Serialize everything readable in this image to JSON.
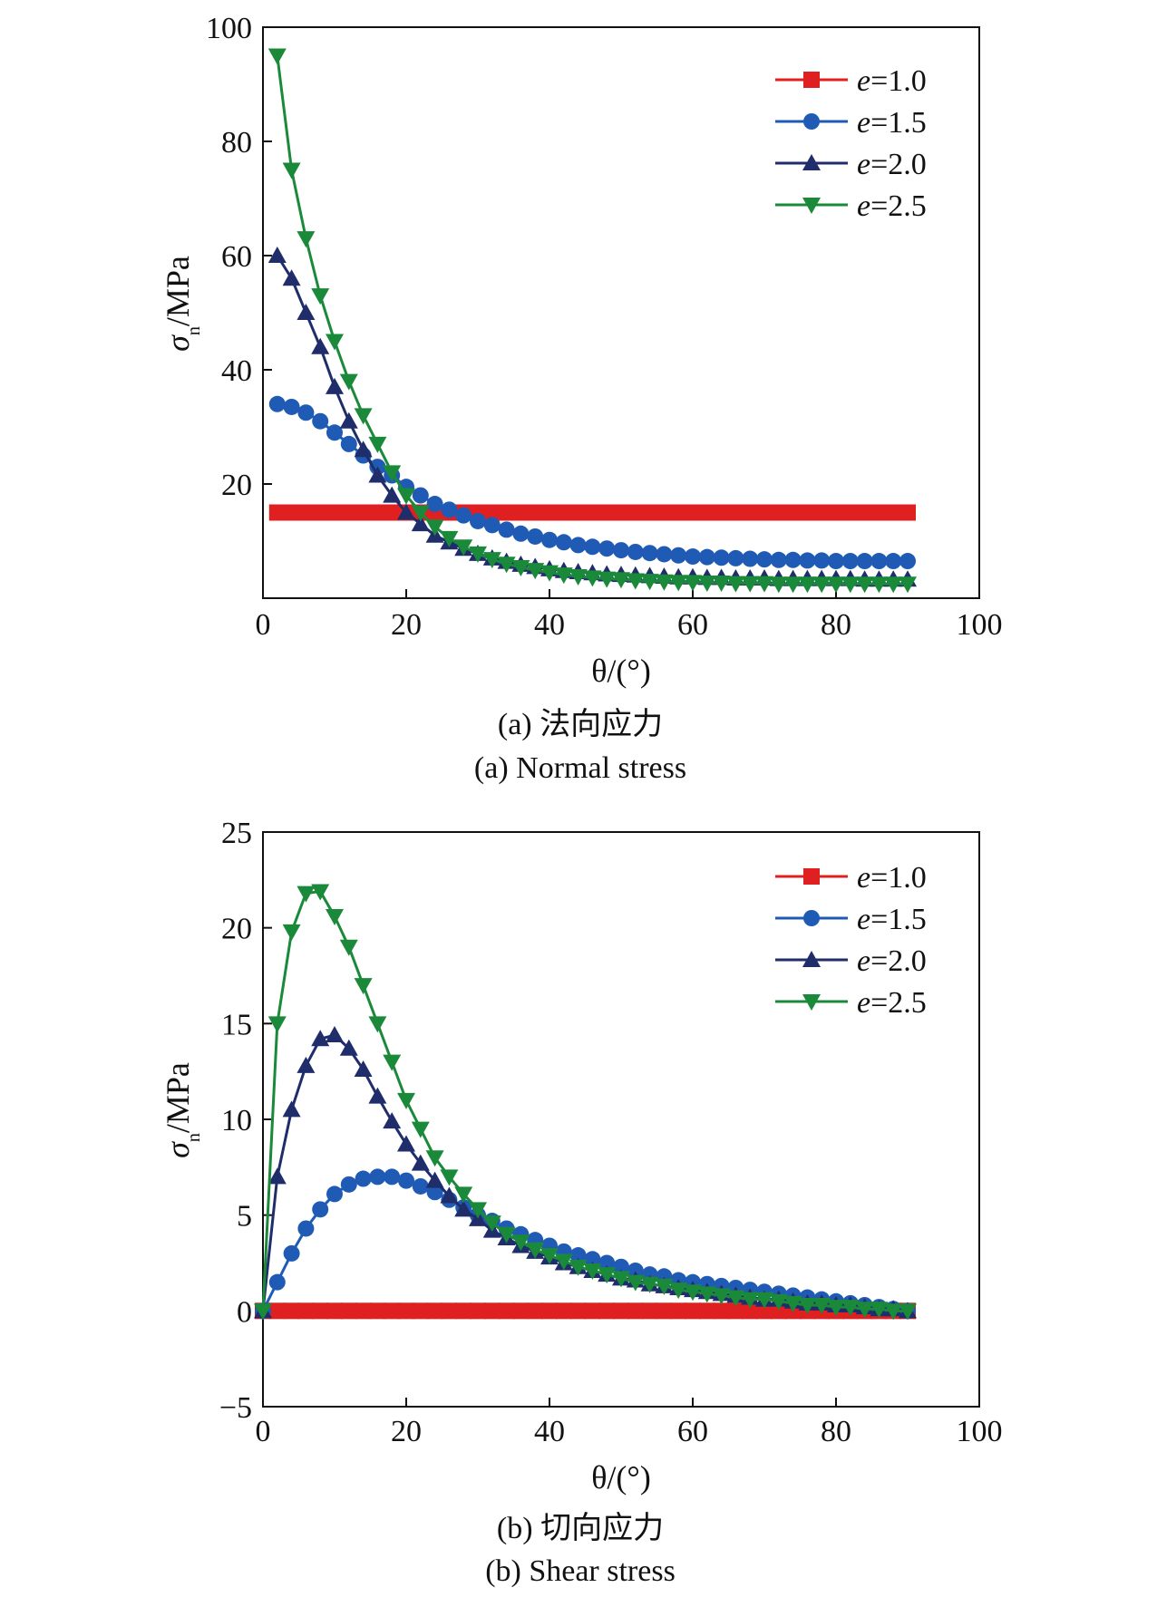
{
  "chart_data": [
    {
      "type": "line",
      "caption_cn": "(a) 法向应力",
      "caption_en": "(a) Normal stress",
      "xlabel": "θ/(°)",
      "ylabel": "σ",
      "ylabel_sub": "n",
      "ylabel_unit": "/MPa",
      "xlim": [
        0,
        100
      ],
      "ylim": [
        0,
        100
      ],
      "xticks": [
        "0",
        "20",
        "40",
        "60",
        "80",
        "100"
      ],
      "yticks": [
        "",
        "20",
        "40",
        "60",
        "80",
        "100"
      ],
      "legend_position": "top-right",
      "x": [
        2,
        4,
        6,
        8,
        10,
        12,
        14,
        16,
        18,
        20,
        22,
        24,
        26,
        28,
        30,
        32,
        34,
        36,
        38,
        40,
        42,
        44,
        46,
        48,
        50,
        52,
        54,
        56,
        58,
        60,
        62,
        64,
        66,
        68,
        70,
        72,
        74,
        76,
        78,
        80,
        82,
        84,
        86,
        88,
        90
      ],
      "series": [
        {
          "name": "e=1.0",
          "marker": "square",
          "color": "#e02020",
          "values": [
            15,
            15,
            15,
            15,
            15,
            15,
            15,
            15,
            15,
            15,
            15,
            15,
            15,
            15,
            15,
            15,
            15,
            15,
            15,
            15,
            15,
            15,
            15,
            15,
            15,
            15,
            15,
            15,
            15,
            15,
            15,
            15,
            15,
            15,
            15,
            15,
            15,
            15,
            15,
            15,
            15,
            15,
            15,
            15,
            15
          ]
        },
        {
          "name": "e=1.5",
          "marker": "circle",
          "color": "#1f5bb5",
          "values": [
            34,
            33.5,
            32.5,
            31,
            29,
            27,
            25,
            23,
            21.5,
            19.5,
            18,
            16.5,
            15.5,
            14.5,
            13.5,
            12.8,
            12,
            11.3,
            10.8,
            10.2,
            9.8,
            9.3,
            9,
            8.7,
            8.4,
            8.1,
            7.9,
            7.7,
            7.5,
            7.3,
            7.2,
            7.1,
            7,
            6.9,
            6.8,
            6.7,
            6.7,
            6.6,
            6.6,
            6.5,
            6.5,
            6.5,
            6.5,
            6.5,
            6.5
          ]
        },
        {
          "name": "e=2.0",
          "marker": "triangle-up",
          "color": "#1f2d6b",
          "values": [
            60,
            56,
            50,
            44,
            37,
            31,
            26,
            21.5,
            18,
            15,
            13,
            11,
            9.8,
            8.7,
            7.8,
            7,
            6.4,
            5.9,
            5.5,
            5.1,
            4.8,
            4.6,
            4.4,
            4.2,
            4.1,
            4,
            3.9,
            3.8,
            3.7,
            3.7,
            3.6,
            3.6,
            3.5,
            3.5,
            3.5,
            3.4,
            3.4,
            3.4,
            3.4,
            3.4,
            3.4,
            3.3,
            3.3,
            3.3,
            3.3
          ]
        },
        {
          "name": "e=2.5",
          "marker": "triangle-down",
          "color": "#1a8a3a",
          "values": [
            95,
            75,
            63,
            53,
            45,
            38,
            32,
            27,
            22,
            18,
            15,
            12.5,
            10.5,
            9,
            7.8,
            6.8,
            6,
            5.4,
            4.9,
            4.5,
            4.1,
            3.8,
            3.6,
            3.4,
            3.3,
            3.1,
            3,
            2.9,
            2.8,
            2.8,
            2.7,
            2.7,
            2.6,
            2.6,
            2.6,
            2.5,
            2.5,
            2.5,
            2.5,
            2.5,
            2.5,
            2.5,
            2.5,
            2.5,
            2.5
          ]
        }
      ]
    },
    {
      "type": "line",
      "caption_cn": "(b) 切向应力",
      "caption_en": "(b) Shear stress",
      "xlabel": "θ/(°)",
      "ylabel": "σ",
      "ylabel_sub": "n",
      "ylabel_unit": "/MPa",
      "xlim": [
        0,
        100
      ],
      "ylim": [
        -5,
        25
      ],
      "xticks": [
        "0",
        "20",
        "40",
        "60",
        "80",
        "100"
      ],
      "yticks": [
        "−5",
        "0",
        "5",
        "10",
        "15",
        "20",
        "25"
      ],
      "legend_position": "top-right",
      "x": [
        0,
        2,
        4,
        6,
        8,
        10,
        12,
        14,
        16,
        18,
        20,
        22,
        24,
        26,
        28,
        30,
        32,
        34,
        36,
        38,
        40,
        42,
        44,
        46,
        48,
        50,
        52,
        54,
        56,
        58,
        60,
        62,
        64,
        66,
        68,
        70,
        72,
        74,
        76,
        78,
        80,
        82,
        84,
        86,
        88,
        90
      ],
      "series": [
        {
          "name": "e=1.0",
          "marker": "square",
          "color": "#e02020",
          "values": [
            0,
            0,
            0,
            0,
            0,
            0,
            0,
            0,
            0,
            0,
            0,
            0,
            0,
            0,
            0,
            0,
            0,
            0,
            0,
            0,
            0,
            0,
            0,
            0,
            0,
            0,
            0,
            0,
            0,
            0,
            0,
            0,
            0,
            0,
            0,
            0,
            0,
            0,
            0,
            0,
            0,
            0,
            0,
            0,
            0,
            0
          ]
        },
        {
          "name": "e=1.5",
          "marker": "circle",
          "color": "#1f5bb5",
          "values": [
            0,
            1.5,
            3,
            4.3,
            5.3,
            6.1,
            6.6,
            6.9,
            7,
            7,
            6.8,
            6.5,
            6.2,
            5.8,
            5.4,
            5,
            4.7,
            4.3,
            4,
            3.7,
            3.4,
            3.1,
            2.9,
            2.7,
            2.5,
            2.3,
            2.1,
            1.9,
            1.8,
            1.6,
            1.5,
            1.4,
            1.3,
            1.2,
            1.1,
            1,
            0.9,
            0.8,
            0.7,
            0.6,
            0.5,
            0.4,
            0.3,
            0.2,
            0.1,
            0
          ]
        },
        {
          "name": "e=2.0",
          "marker": "triangle-up",
          "color": "#1f2d6b",
          "values": [
            0,
            7,
            10.5,
            12.8,
            14.2,
            14.4,
            13.7,
            12.6,
            11.2,
            9.9,
            8.7,
            7.7,
            6.8,
            6,
            5.3,
            4.8,
            4.2,
            3.8,
            3.4,
            3.1,
            2.8,
            2.5,
            2.3,
            2.1,
            1.9,
            1.7,
            1.6,
            1.4,
            1.3,
            1.2,
            1.1,
            1,
            0.9,
            0.8,
            0.7,
            0.6,
            0.6,
            0.5,
            0.4,
            0.4,
            0.3,
            0.3,
            0.2,
            0.1,
            0.1,
            0
          ]
        },
        {
          "name": "e=2.5",
          "marker": "triangle-down",
          "color": "#1a8a3a",
          "values": [
            0,
            15,
            19.8,
            21.8,
            21.9,
            20.6,
            19,
            17,
            15,
            13,
            11,
            9.5,
            8,
            7,
            6.1,
            5.3,
            4.6,
            4,
            3.6,
            3.2,
            2.9,
            2.6,
            2.3,
            2.1,
            1.9,
            1.7,
            1.5,
            1.4,
            1.3,
            1.1,
            1,
            0.9,
            0.8,
            0.7,
            0.6,
            0.6,
            0.5,
            0.4,
            0.3,
            0.3,
            0.2,
            0.2,
            0.1,
            0.1,
            0,
            0
          ]
        }
      ]
    }
  ]
}
